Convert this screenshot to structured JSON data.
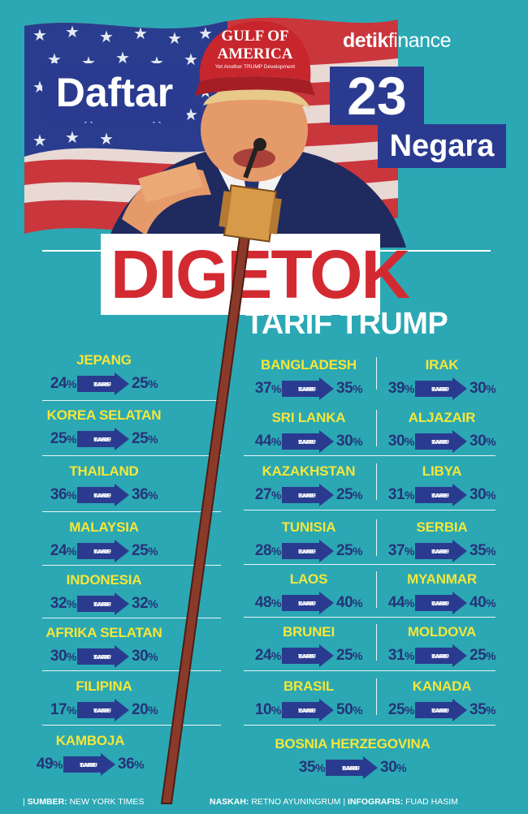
{
  "header": {
    "brand_bold": "detik",
    "brand_light": "finance",
    "title_word": "Daftar",
    "title_number": "23",
    "title_unit": "Negara",
    "hat_line1": "GULF OF",
    "hat_line2": "AMERICA",
    "hat_line3": "Yet Another TRUMP Development",
    "headline": "DIGETOK",
    "subheadline": "TARIF TRUMP"
  },
  "arrow_label_1": "TARIF",
  "arrow_label_2": "BARU",
  "percent_sign": "%",
  "countries": [
    {
      "name": "JEPANG",
      "old": "24",
      "new": "25"
    },
    {
      "name": "KOREA SELATAN",
      "old": "25",
      "new": "25"
    },
    {
      "name": "THAILAND",
      "old": "36",
      "new": "36"
    },
    {
      "name": "MALAYSIA",
      "old": "24",
      "new": "25"
    },
    {
      "name": "INDONESIA",
      "old": "32",
      "new": "32"
    },
    {
      "name": "AFRIKA SELATAN",
      "old": "30",
      "new": "30"
    },
    {
      "name": "FILIPINA",
      "old": "17",
      "new": "20"
    },
    {
      "name": "KAMBOJA",
      "old": "49",
      "new": "36"
    },
    {
      "name": "BANGLADESH",
      "old": "37",
      "new": "35"
    },
    {
      "name": "SRI LANKA",
      "old": "44",
      "new": "30"
    },
    {
      "name": "KAZAKHSTAN",
      "old": "27",
      "new": "25"
    },
    {
      "name": "TUNISIA",
      "old": "28",
      "new": "25"
    },
    {
      "name": "LAOS",
      "old": "48",
      "new": "40"
    },
    {
      "name": "BRUNEI",
      "old": "24",
      "new": "25"
    },
    {
      "name": "BRASIL",
      "old": "10",
      "new": "50"
    },
    {
      "name": "IRAK",
      "old": "39",
      "new": "30"
    },
    {
      "name": "ALJAZAIR",
      "old": "30",
      "new": "30"
    },
    {
      "name": "LIBYA",
      "old": "31",
      "new": "30"
    },
    {
      "name": "SERBIA",
      "old": "37",
      "new": "35"
    },
    {
      "name": "MYANMAR",
      "old": "44",
      "new": "40"
    },
    {
      "name": "MOLDOVA",
      "old": "31",
      "new": "25"
    },
    {
      "name": "KANADA",
      "old": "25",
      "new": "35"
    },
    {
      "name": "BOSNIA HERZEGOVINA",
      "old": "35",
      "new": "30"
    }
  ],
  "footer": {
    "source_label": "SUMBER:",
    "source_value": "NEW YORK TIMES",
    "writer_label": "NASKAH:",
    "writer_value": "RETNO AYUNINGRUM",
    "graphic_label": "INFOGRAFIS:",
    "graphic_value": "FUAD HASIM"
  },
  "colors": {
    "background": "#2ba8b4",
    "navy": "#263379",
    "yellow": "#f4e63a",
    "red": "#d32a32"
  }
}
